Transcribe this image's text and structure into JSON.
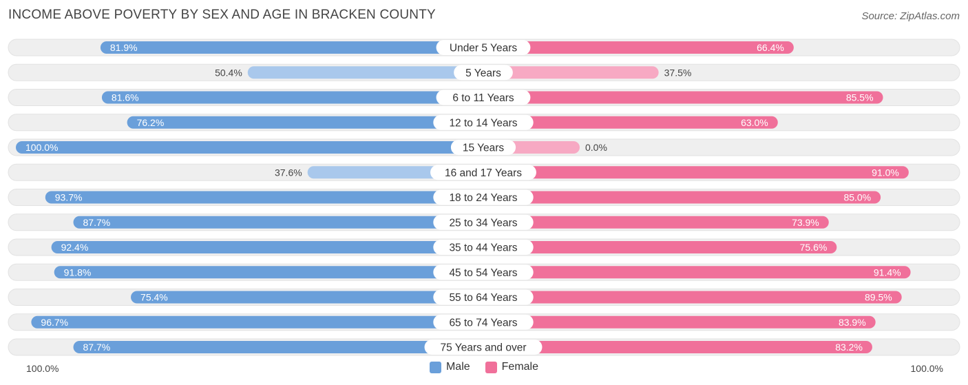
{
  "title": "INCOME ABOVE POVERTY BY SEX AND AGE IN BRACKEN COUNTY",
  "source": "Source: ZipAtlas.com",
  "colors": {
    "male_strong": "#6a9fda",
    "male_light": "#a9c8ec",
    "female_strong": "#f0709a",
    "female_light": "#f7a9c3",
    "track": "#efefef"
  },
  "legend": {
    "male": "Male",
    "female": "Female"
  },
  "axis": {
    "left": "100.0%",
    "right": "100.0%"
  },
  "chart_data": {
    "type": "bar",
    "orientation": "horizontal-diverging",
    "title": "INCOME ABOVE POVERTY BY SEX AND AGE IN BRACKEN COUNTY",
    "categories": [
      "Under 5 Years",
      "5 Years",
      "6 to 11 Years",
      "12 to 14 Years",
      "15 Years",
      "16 and 17 Years",
      "18 to 24 Years",
      "25 to 34 Years",
      "35 to 44 Years",
      "45 to 54 Years",
      "55 to 64 Years",
      "65 to 74 Years",
      "75 Years and over"
    ],
    "series": [
      {
        "name": "Male",
        "values": [
          81.9,
          50.4,
          81.6,
          76.2,
          100.0,
          37.6,
          93.7,
          87.7,
          92.4,
          91.8,
          75.4,
          96.7,
          87.7
        ],
        "labels": [
          "81.9%",
          "50.4%",
          "81.6%",
          "76.2%",
          "100.0%",
          "37.6%",
          "93.7%",
          "87.7%",
          "92.4%",
          "91.8%",
          "75.4%",
          "96.7%",
          "87.7%"
        ]
      },
      {
        "name": "Female",
        "values": [
          66.4,
          37.5,
          85.5,
          63.0,
          0.0,
          91.0,
          85.0,
          73.9,
          75.6,
          91.4,
          89.5,
          83.9,
          83.2
        ],
        "labels": [
          "66.4%",
          "37.5%",
          "85.5%",
          "63.0%",
          "0.0%",
          "91.0%",
          "85.0%",
          "73.9%",
          "75.6%",
          "91.4%",
          "89.5%",
          "83.9%",
          "83.2%"
        ]
      }
    ],
    "xlim": [
      0,
      100
    ],
    "legend_position": "bottom-center"
  }
}
